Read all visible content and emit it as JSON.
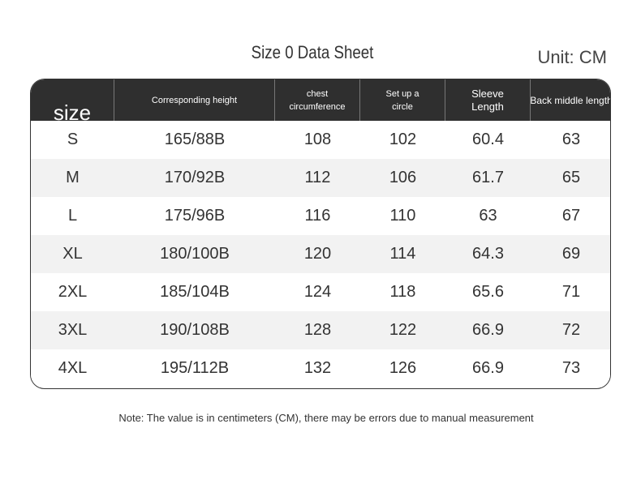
{
  "header": {
    "title": "Size 0 Data Sheet",
    "unit": "Unit: CM"
  },
  "table": {
    "columns": [
      "size",
      "Corresponding height",
      "chest circumference",
      "Set up a circle",
      "Sleeve Length",
      "Back middle length"
    ],
    "rows": [
      [
        "S",
        "165/88B",
        "108",
        "102",
        "60.4",
        "63"
      ],
      [
        "M",
        "170/92B",
        "112",
        "106",
        "61.7",
        "65"
      ],
      [
        "L",
        "175/96B",
        "116",
        "110",
        "63",
        "67"
      ],
      [
        "XL",
        "180/100B",
        "120",
        "114",
        "64.3",
        "69"
      ],
      [
        "2XL",
        "185/104B",
        "124",
        "118",
        "65.6",
        "71"
      ],
      [
        "3XL",
        "190/108B",
        "128",
        "122",
        "66.9",
        "72"
      ],
      [
        "4XL",
        "195/112B",
        "132",
        "126",
        "66.9",
        "73"
      ]
    ]
  },
  "note": "Note: The value is in centimeters (CM), there may be errors due to manual measurement"
}
